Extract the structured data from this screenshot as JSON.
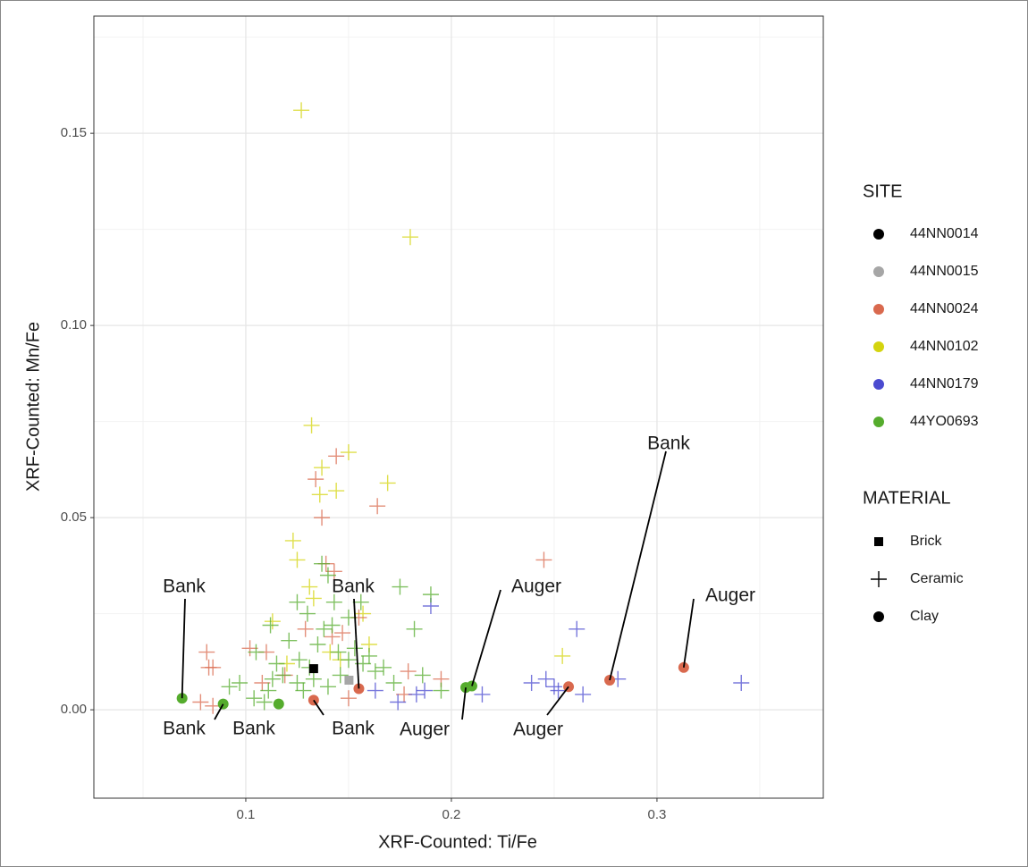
{
  "chart_data": {
    "type": "scatter",
    "x_label": "XRF-Counted: Ti/Fe",
    "y_label": "XRF-Counted: Mn/Fe",
    "xlim": [
      0.0261,
      0.3809
    ],
    "ylim": [
      -0.023,
      0.1805
    ],
    "xticks": [
      0.1,
      0.2,
      0.3
    ],
    "yticks": [
      {
        "value": 0,
        "label": "0.00"
      },
      {
        "value": 0.05,
        "label": "0.05"
      },
      {
        "value": 0.1,
        "label": "0.10"
      },
      {
        "value": 0.15,
        "label": "0.15"
      }
    ],
    "grid": true,
    "legend": {
      "site": {
        "title": "SITE",
        "entries": [
          {
            "name": "44NN0014",
            "color": "#000000"
          },
          {
            "name": "44NN0015",
            "color": "#a6a6a6"
          },
          {
            "name": "44NN0024",
            "color": "#d9694e"
          },
          {
            "name": "44NN0102",
            "color": "#d4d40f"
          },
          {
            "name": "44NN0179",
            "color": "#4b4bd0"
          },
          {
            "name": "44YO0693",
            "color": "#55ac2d"
          }
        ]
      },
      "material": {
        "title": "MATERIAL",
        "entries": [
          {
            "name": "Brick",
            "shape": "square"
          },
          {
            "name": "Ceramic",
            "shape": "plus"
          },
          {
            "name": "Clay",
            "shape": "circle"
          }
        ]
      }
    },
    "series": [
      {
        "site": "44NN0102",
        "material": "Ceramic",
        "x": [
          0.127,
          0.18,
          0.132,
          0.15,
          0.137,
          0.169,
          0.144,
          0.136,
          0.123,
          0.125,
          0.131,
          0.133,
          0.113,
          0.157,
          0.254,
          0.141,
          0.146,
          0.12,
          0.16
        ],
        "y": [
          0.156,
          0.123,
          0.074,
          0.067,
          0.063,
          0.059,
          0.057,
          0.056,
          0.044,
          0.039,
          0.032,
          0.029,
          0.023,
          0.025,
          0.014,
          0.015,
          0.013,
          0.012,
          0.017
        ]
      },
      {
        "site": "44NN0024",
        "material": "Ceramic",
        "x": [
          0.144,
          0.134,
          0.164,
          0.137,
          0.245,
          0.139,
          0.143,
          0.081,
          0.082,
          0.084,
          0.102,
          0.11,
          0.147,
          0.155,
          0.179,
          0.195,
          0.177,
          0.15,
          0.078,
          0.084,
          0.108,
          0.129,
          0.142,
          0.119
        ],
        "y": [
          0.066,
          0.06,
          0.053,
          0.05,
          0.039,
          0.038,
          0.036,
          0.015,
          0.011,
          0.011,
          0.016,
          0.015,
          0.02,
          0.024,
          0.01,
          0.008,
          0.004,
          0.003,
          0.002,
          0.001,
          0.007,
          0.021,
          0.019,
          0.009
        ]
      },
      {
        "site": "44NN0179",
        "material": "Ceramic",
        "x": [
          0.19,
          0.261,
          0.239,
          0.246,
          0.25,
          0.252,
          0.264,
          0.281,
          0.341,
          0.215,
          0.187,
          0.183,
          0.174,
          0.163
        ],
        "y": [
          0.027,
          0.021,
          0.007,
          0.008,
          0.006,
          0.005,
          0.004,
          0.008,
          0.007,
          0.004,
          0.005,
          0.004,
          0.002,
          0.005
        ]
      },
      {
        "site": "44YO0693",
        "material": "Ceramic",
        "x": [
          0.175,
          0.19,
          0.182,
          0.125,
          0.137,
          0.14,
          0.13,
          0.121,
          0.112,
          0.105,
          0.097,
          0.092,
          0.109,
          0.111,
          0.115,
          0.126,
          0.131,
          0.135,
          0.138,
          0.142,
          0.145,
          0.15,
          0.153,
          0.157,
          0.16,
          0.163,
          0.167,
          0.125,
          0.118,
          0.128,
          0.133,
          0.14,
          0.146,
          0.172,
          0.186,
          0.195,
          0.113,
          0.104,
          0.15,
          0.156,
          0.143
        ],
        "y": [
          0.032,
          0.03,
          0.021,
          0.028,
          0.038,
          0.035,
          0.025,
          0.018,
          0.022,
          0.015,
          0.007,
          0.006,
          0.002,
          0.005,
          0.012,
          0.013,
          0.011,
          0.017,
          0.021,
          0.022,
          0.015,
          0.013,
          0.016,
          0.012,
          0.014,
          0.01,
          0.011,
          0.007,
          0.009,
          0.005,
          0.008,
          0.006,
          0.009,
          0.007,
          0.009,
          0.005,
          0.008,
          0.003,
          0.024,
          0.028,
          0.028
        ]
      },
      {
        "site": "44NN0015",
        "material": "Brick",
        "x": [
          0.1502
        ],
        "y": [
          0.0077
        ]
      },
      {
        "site": "44NN0014",
        "material": "Brick",
        "x": [
          0.133
        ],
        "y": [
          0.0107
        ]
      },
      {
        "site": "44YO0693",
        "material": "Clay",
        "x": [
          0.069,
          0.089,
          0.116,
          0.207,
          0.21
        ],
        "y": [
          0.003,
          0.0015,
          0.0015,
          0.0058,
          0.0062
        ],
        "labels": [
          "Bank",
          "Bank",
          "Bank",
          "Auger",
          "Auger"
        ]
      },
      {
        "site": "44NN0024",
        "material": "Clay",
        "x": [
          0.133,
          0.155,
          0.257,
          0.277,
          0.313
        ],
        "y": [
          0.0025,
          0.0055,
          0.006,
          0.0077,
          0.011
        ],
        "labels": [
          "Bank",
          "Bank",
          "Auger",
          "Bank",
          "Auger"
        ]
      }
    ]
  }
}
